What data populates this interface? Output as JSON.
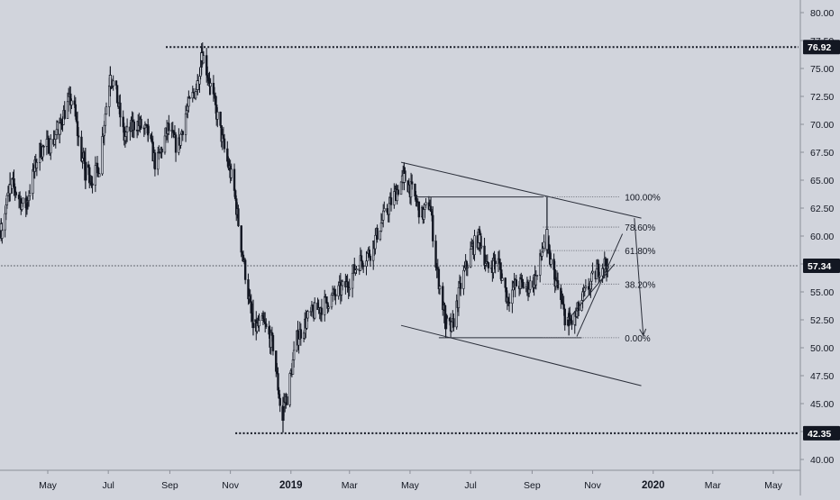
{
  "colors": {
    "background": "#d1d4dc",
    "candle": "#131722",
    "line": "#2a2e39",
    "label_bg": "#131722",
    "label_text": "#ffffff",
    "axis_text": "#131722",
    "fib_line": "#50535e"
  },
  "chart_data": {
    "type": "candlestick",
    "title": "",
    "xlabel": "",
    "ylabel": "",
    "ylim": [
      38.6,
      81.6
    ],
    "grid": false,
    "legend": "none",
    "y_ticks": [
      "40.00",
      "42.50",
      "45.00",
      "47.50",
      "50.00",
      "52.50",
      "55.00",
      "57.50",
      "60.00",
      "62.50",
      "65.00",
      "67.50",
      "70.00",
      "72.50",
      "75.00",
      "77.50",
      "80.00"
    ],
    "x_ticks": [
      "May",
      "Jul",
      "Sep",
      "Nov",
      "2019",
      "Mar",
      "May",
      "Jul",
      "Sep",
      "Nov",
      "2020",
      "Mar",
      "May"
    ],
    "x_tick_dates": [
      "2018-05-01",
      "2018-07-01",
      "2018-09-01",
      "2018-11-01",
      "2019-01-01",
      "2019-03-01",
      "2019-05-01",
      "2019-07-01",
      "2019-09-01",
      "2019-11-01",
      "2020-01-01",
      "2020-03-01",
      "2020-05-01"
    ],
    "bold_x_ticks": [
      "2019",
      "2020"
    ],
    "price_labels": [
      {
        "text": "76.92",
        "value": 76.92
      },
      {
        "text": "57.34",
        "value": 57.34
      },
      {
        "text": "42.35",
        "value": 42.35
      }
    ],
    "horizontal_levels": [
      {
        "value": 76.92,
        "style": "dotted",
        "from": "2018-08-28"
      },
      {
        "value": 42.35,
        "style": "dotted",
        "from": "2018-11-06"
      },
      {
        "value": 57.34,
        "style": "dotted-thin",
        "from": "2018-03-15"
      }
    ],
    "fib_levels": [
      {
        "label": "100.00%",
        "value": 63.5
      },
      {
        "label": "78.60%",
        "value": 60.8
      },
      {
        "label": "61.80%",
        "value": 58.7
      },
      {
        "label": "38.20%",
        "value": 55.7
      },
      {
        "label": "0.00%",
        "value": 50.9
      }
    ],
    "fib_start": "2019-09-12",
    "fib_end": "2019-11-28",
    "trend_lines": [
      {
        "x1": "2019-04-22",
        "y1": 66.6,
        "x2": "2019-12-20",
        "y2": 61.6
      },
      {
        "x1": "2019-04-22",
        "y1": 52.0,
        "x2": "2019-12-20",
        "y2": 46.6
      },
      {
        "x1": "2019-05-06",
        "y1": 63.5,
        "x2": "2019-09-12",
        "y2": 63.5
      },
      {
        "x1": "2019-05-30",
        "y1": 50.9,
        "x2": "2019-10-21",
        "y2": 50.9
      },
      {
        "x1": "2019-10-16",
        "y1": 51.0,
        "x2": "2019-12-01",
        "y2": 60.2
      },
      {
        "x1": "2019-10-09",
        "y1": 52.7,
        "x2": "2019-11-23",
        "y2": 57.5
      }
    ],
    "arrow": {
      "x1": "2019-12-13",
      "y1": 61.6,
      "x2": "2019-12-22",
      "y2": 51.1
    },
    "price_path": [
      [
        "2018-03-15",
        60.6
      ],
      [
        "2018-03-25",
        64.8
      ],
      [
        "2018-04-08",
        62.4
      ],
      [
        "2018-04-22",
        67.6
      ],
      [
        "2018-05-06",
        68.4
      ],
      [
        "2018-05-20",
        71.6
      ],
      [
        "2018-05-26",
        72.4
      ],
      [
        "2018-06-03",
        67.4
      ],
      [
        "2018-06-14",
        65.1
      ],
      [
        "2018-06-22",
        66.2
      ],
      [
        "2018-06-26",
        69.6
      ],
      [
        "2018-07-03",
        74.6
      ],
      [
        "2018-07-09",
        72.7
      ],
      [
        "2018-07-17",
        68.8
      ],
      [
        "2018-07-29",
        70.2
      ],
      [
        "2018-08-10",
        69.2
      ],
      [
        "2018-08-18",
        66.2
      ],
      [
        "2018-08-30",
        69.6
      ],
      [
        "2018-09-09",
        67.8
      ],
      [
        "2018-09-17",
        71.0
      ],
      [
        "2018-09-29",
        73.6
      ],
      [
        "2018-10-03",
        76.6
      ],
      [
        "2018-10-09",
        74.6
      ],
      [
        "2018-10-19",
        70.6
      ],
      [
        "2018-10-27",
        67.3
      ],
      [
        "2018-11-04",
        64.6
      ],
      [
        "2018-11-12",
        59.1
      ],
      [
        "2018-11-18",
        55.5
      ],
      [
        "2018-11-24",
        51.6
      ],
      [
        "2018-12-04",
        52.2
      ],
      [
        "2018-12-14",
        50.2
      ],
      [
        "2018-12-22",
        44.3
      ],
      [
        "2018-12-28",
        45.6
      ],
      [
        "2019-01-07",
        50.8
      ],
      [
        "2019-01-19",
        52.8
      ],
      [
        "2019-02-02",
        53.8
      ],
      [
        "2019-02-14",
        54.7
      ],
      [
        "2019-02-26",
        55.6
      ],
      [
        "2019-03-10",
        57.6
      ],
      [
        "2019-03-22",
        58.6
      ],
      [
        "2019-04-03",
        61.4
      ],
      [
        "2019-04-15",
        63.6
      ],
      [
        "2019-04-25",
        65.3
      ],
      [
        "2019-05-05",
        63.6
      ],
      [
        "2019-05-13",
        61.8
      ],
      [
        "2019-05-21",
        63.0
      ],
      [
        "2019-05-27",
        57.6
      ],
      [
        "2019-06-06",
        52.2
      ],
      [
        "2019-06-12",
        51.6
      ],
      [
        "2019-06-22",
        56.0
      ],
      [
        "2019-07-02",
        58.8
      ],
      [
        "2019-07-10",
        60.0
      ],
      [
        "2019-07-18",
        57.0
      ],
      [
        "2019-07-28",
        58.0
      ],
      [
        "2019-08-07",
        54.4
      ],
      [
        "2019-08-17",
        55.8
      ],
      [
        "2019-08-27",
        55.4
      ],
      [
        "2019-09-06",
        56.4
      ],
      [
        "2019-09-14",
        60.0
      ],
      [
        "2019-09-18",
        58.2
      ],
      [
        "2019-09-24",
        56.2
      ],
      [
        "2019-10-04",
        52.8
      ],
      [
        "2019-10-12",
        52.2
      ],
      [
        "2019-10-22",
        54.4
      ],
      [
        "2019-10-30",
        55.8
      ],
      [
        "2019-11-09",
        57.4
      ],
      [
        "2019-11-17",
        57.6
      ]
    ],
    "series": [
      {
        "x": "2018-03-15",
        "o": 60.5,
        "h": 61.6,
        "l": 59.9,
        "c": 61.1
      },
      {
        "x": "2018-03-24",
        "o": 63.8,
        "h": 65.7,
        "l": 63.1,
        "c": 64.6
      },
      {
        "x": "2018-04-10",
        "o": 62.9,
        "h": 63.6,
        "l": 61.9,
        "c": 62.4
      },
      {
        "x": "2018-05-13",
        "o": 69.1,
        "h": 70.6,
        "l": 68.3,
        "c": 70.1
      },
      {
        "x": "2018-06-08",
        "o": 66.6,
        "h": 67.9,
        "l": 64.2,
        "c": 65.0
      },
      {
        "x": "2018-07-03",
        "o": 73.4,
        "h": 75.2,
        "l": 72.5,
        "c": 74.4
      },
      {
        "x": "2018-08-10",
        "o": 69.8,
        "h": 70.5,
        "l": 68.5,
        "c": 69.2
      },
      {
        "x": "2018-09-29",
        "o": 73.1,
        "h": 74.5,
        "l": 72.6,
        "c": 73.9
      },
      {
        "x": "2018-10-03",
        "o": 75.7,
        "h": 76.9,
        "l": 75.1,
        "c": 76.4
      },
      {
        "x": "2018-11-24",
        "o": 52.2,
        "h": 54.3,
        "l": 51.1,
        "c": 51.8
      },
      {
        "x": "2018-12-24",
        "o": 44.7,
        "h": 45.6,
        "l": 42.4,
        "c": 43.5
      },
      {
        "x": "2019-04-25",
        "o": 64.8,
        "h": 66.6,
        "l": 64.1,
        "c": 65.6
      },
      {
        "x": "2019-06-06",
        "o": 53.0,
        "h": 53.8,
        "l": 50.9,
        "c": 51.7
      },
      {
        "x": "2019-07-10",
        "o": 59.4,
        "h": 60.9,
        "l": 58.6,
        "c": 60.1
      },
      {
        "x": "2019-09-16",
        "o": 58.8,
        "h": 63.5,
        "l": 58.1,
        "c": 60.6
      },
      {
        "x": "2019-10-08",
        "o": 52.5,
        "h": 53.3,
        "l": 51.1,
        "c": 52.0
      },
      {
        "x": "2019-11-16",
        "o": 57.1,
        "h": 58.0,
        "l": 56.3,
        "c": 57.3
      }
    ]
  }
}
